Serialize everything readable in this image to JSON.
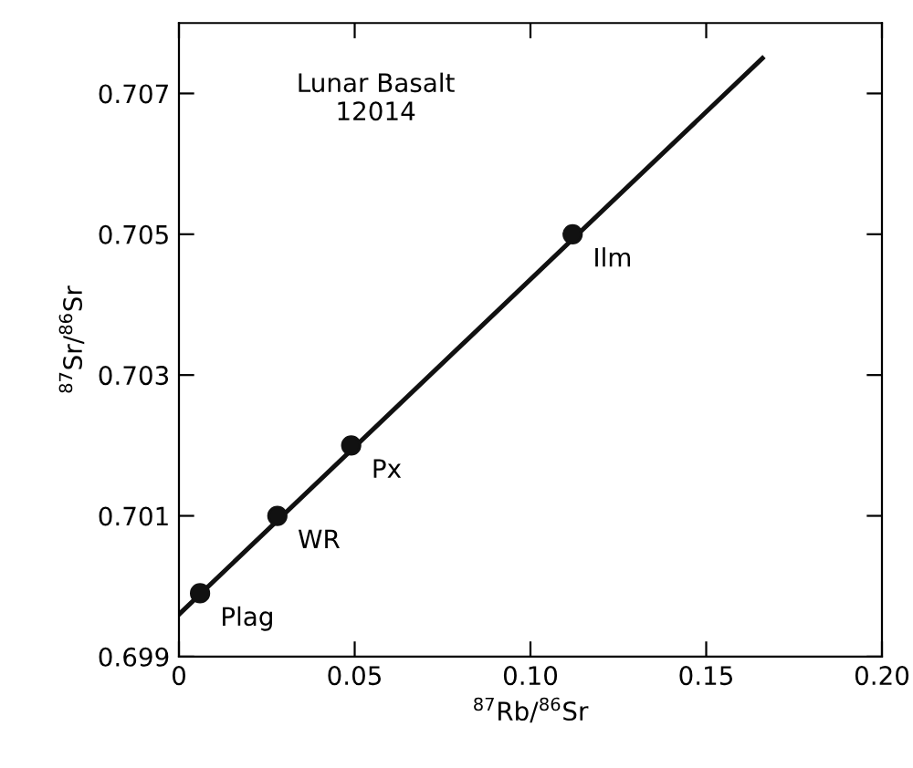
{
  "chart_data": {
    "type": "scatter",
    "xlabel": "$^{87}$Rb/$^{86}$Sr",
    "ylabel": "$^{87}$Sr/$^{86}$Sr",
    "xlim": [
      0,
      0.2
    ],
    "ylim": [
      0.699,
      0.708
    ],
    "xticks": [
      {
        "value": 0,
        "label": "0"
      },
      0.05,
      {
        "value": 0.1,
        "label": "0.10"
      },
      0.15,
      {
        "value": 0.2,
        "label": "0.20"
      }
    ],
    "yticks": [
      0.699,
      0.701,
      0.703,
      0.705,
      0.707
    ],
    "marker": "circle",
    "grid": false,
    "legend": false,
    "series": [
      {
        "type": "line",
        "marker": "none",
        "color": "#111111",
        "x": [
          0,
          0.166
        ],
        "values": [
          0.6996,
          0.7075
        ]
      },
      {
        "color": "#111111",
        "x": [
          0.006,
          0.028,
          0.049,
          0.112
        ],
        "values": [
          0.6999,
          0.701,
          0.702,
          0.705
        ]
      }
    ],
    "annotations": [
      "Lunar Basalt\n12014",
      {
        "text": "Plag",
        "x": 0.006,
        "y": 0.6999
      },
      {
        "text": "WR",
        "x": 0.028,
        "y": 0.701
      },
      {
        "text": "Px",
        "x": 0.049,
        "y": 0.702
      },
      {
        "text": "Ilm",
        "x": 0.112,
        "y": 0.705
      }
    ]
  }
}
